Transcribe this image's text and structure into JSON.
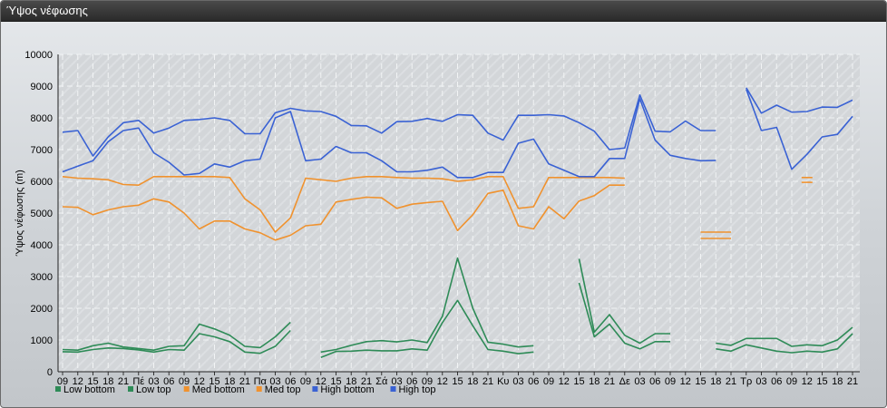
{
  "window": {
    "title": "Ύψος νέφωσης"
  },
  "chart_data": {
    "type": "line",
    "title": "",
    "xlabel": "",
    "ylabel": "Ύψος νέφωσης (m)",
    "ylim": [
      0,
      10000
    ],
    "yticks": [
      0,
      1000,
      2000,
      3000,
      4000,
      5000,
      6000,
      7000,
      8000,
      9000,
      10000
    ],
    "grid": true,
    "legend_position": "bottom-left",
    "categories": [
      "09",
      "12",
      "15",
      "18",
      "21",
      "Πέ",
      "03",
      "06",
      "09",
      "12",
      "15",
      "18",
      "21",
      "Πα",
      "03",
      "06",
      "09",
      "12",
      "15",
      "18",
      "21",
      "Σά",
      "03",
      "06",
      "09",
      "12",
      "15",
      "18",
      "21",
      "Κυ",
      "03",
      "06",
      "09",
      "12",
      "15",
      "18",
      "21",
      "Δε",
      "03",
      "06",
      "09",
      "12",
      "15",
      "18",
      "21",
      "Τρ",
      "03",
      "06",
      "09",
      "12",
      "15",
      "18",
      "21"
    ],
    "series": [
      {
        "name": "Low bottom",
        "color": "#2e8b57",
        "values": [
          630,
          620,
          700,
          750,
          730,
          690,
          620,
          700,
          680,
          1200,
          1100,
          950,
          620,
          580,
          800,
          1300,
          null,
          450,
          640,
          650,
          680,
          660,
          660,
          720,
          680,
          1550,
          2250,
          1450,
          700,
          650,
          570,
          620,
          null,
          null,
          2800,
          1100,
          1500,
          900,
          720,
          950,
          950,
          null,
          null,
          720,
          650,
          850,
          750,
          650,
          600,
          650,
          620,
          720,
          1200
        ]
      },
      {
        "name": "Low top",
        "color": "#2e8b57",
        "values": [
          700,
          680,
          820,
          900,
          780,
          730,
          680,
          800,
          820,
          1500,
          1350,
          1150,
          800,
          760,
          1100,
          1560,
          null,
          620,
          700,
          830,
          950,
          980,
          940,
          1000,
          920,
          1750,
          3580,
          2000,
          930,
          870,
          780,
          820,
          null,
          null,
          3560,
          1250,
          1800,
          1150,
          900,
          1200,
          1200,
          null,
          null,
          900,
          830,
          1050,
          1050,
          1050,
          800,
          850,
          820,
          1000,
          1400
        ]
      },
      {
        "name": "Med bottom",
        "color": "#f0922e",
        "values": [
          5200,
          5180,
          4950,
          5100,
          5200,
          5250,
          5450,
          5350,
          5000,
          4500,
          4750,
          4750,
          4500,
          4380,
          4150,
          4300,
          4600,
          4650,
          5350,
          5430,
          5500,
          5480,
          5150,
          5280,
          5330,
          5370,
          4450,
          4950,
          5620,
          5720,
          4600,
          4500,
          5200,
          4820,
          5380,
          5550,
          5880,
          5880,
          null,
          null,
          null,
          null,
          4200,
          4200,
          4200,
          null,
          null,
          null,
          null,
          5970,
          null,
          null,
          null
        ]
      },
      {
        "name": "Med top",
        "color": "#f0922e",
        "values": [
          6150,
          6100,
          6080,
          6050,
          5900,
          5880,
          6150,
          6150,
          6150,
          6150,
          6150,
          6120,
          5450,
          5100,
          4400,
          4850,
          6100,
          6050,
          6000,
          6100,
          6150,
          6150,
          6120,
          6100,
          6100,
          6080,
          6000,
          6050,
          6150,
          6150,
          5150,
          5200,
          6120,
          6120,
          6120,
          6120,
          6120,
          6100,
          null,
          null,
          null,
          null,
          4400,
          4400,
          4400,
          null,
          null,
          null,
          null,
          6120,
          null,
          null,
          null
        ]
      },
      {
        "name": "High bottom",
        "color": "#3a62d4",
        "values": [
          6300,
          6480,
          6650,
          7250,
          7600,
          7680,
          6900,
          6600,
          6200,
          6250,
          6550,
          6450,
          6650,
          6700,
          8000,
          8200,
          6650,
          6700,
          7100,
          6900,
          6900,
          6650,
          6300,
          6300,
          6350,
          6450,
          6120,
          6120,
          6280,
          6280,
          7200,
          7330,
          6550,
          6350,
          6150,
          6150,
          6720,
          6720,
          8600,
          7300,
          6820,
          6720,
          6650,
          6660,
          null,
          8900,
          7600,
          7700,
          6380,
          6850,
          7400,
          7480,
          8050
        ]
      },
      {
        "name": "High top",
        "color": "#3a62d4",
        "values": [
          7550,
          7600,
          6800,
          7400,
          7850,
          7920,
          7520,
          7680,
          7920,
          7950,
          8000,
          7920,
          7500,
          7500,
          8160,
          8300,
          8220,
          8200,
          8050,
          7760,
          7750,
          7520,
          7880,
          7890,
          7980,
          7890,
          8100,
          8080,
          7520,
          7300,
          8080,
          8080,
          8100,
          8060,
          7850,
          7580,
          7000,
          7050,
          8720,
          7580,
          7560,
          7900,
          7600,
          7600,
          null,
          8950,
          8150,
          8400,
          8180,
          8200,
          8340,
          8330,
          8560
        ]
      }
    ]
  }
}
